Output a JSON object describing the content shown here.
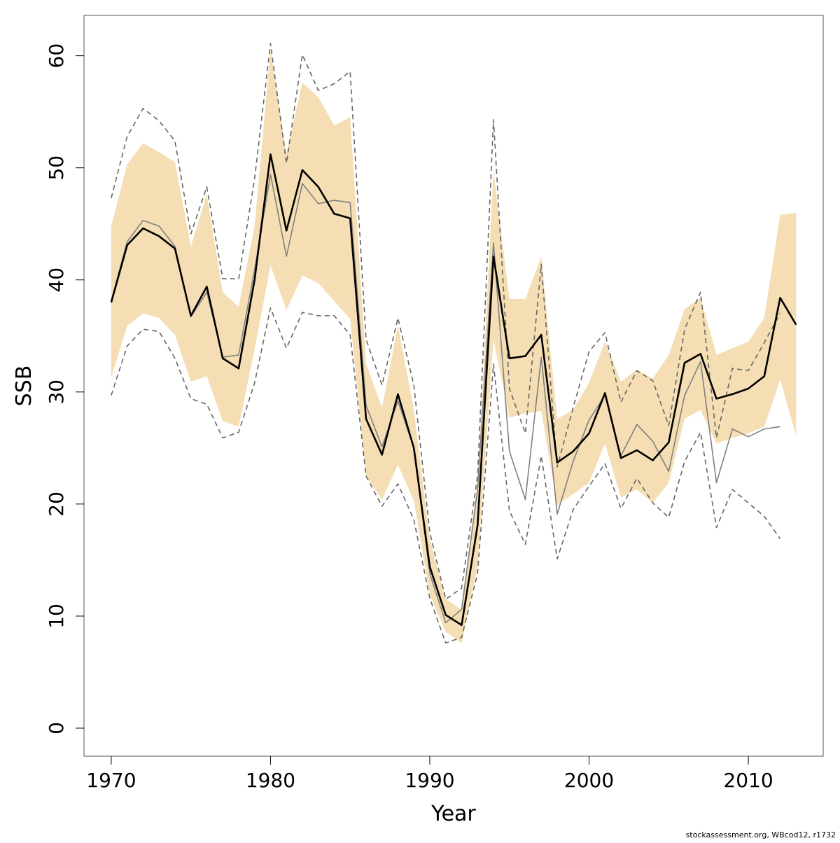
{
  "chart_data": {
    "type": "line",
    "x_label": "Year",
    "y_label": "SSB",
    "caption": "stockassessment.org, WBcod12, r1732",
    "x": [
      1970,
      1971,
      1972,
      1973,
      1974,
      1975,
      1976,
      1977,
      1978,
      1979,
      1980,
      1981,
      1982,
      1983,
      1984,
      1985,
      1986,
      1987,
      1988,
      1989,
      1990,
      1991,
      1992,
      1993,
      1994,
      1995,
      1996,
      1997,
      1998,
      1999,
      2000,
      2001,
      2002,
      2003,
      2004,
      2005,
      2006,
      2007,
      2008,
      2009,
      2010,
      2011,
      2012,
      2013
    ],
    "xlim": [
      1968.29,
      2014.7
    ],
    "xticks": [
      1970,
      1980,
      1990,
      2000,
      2010
    ],
    "ylim": [
      -2.5,
      63.6
    ],
    "yticks": [
      0,
      10,
      20,
      30,
      40,
      50,
      60
    ],
    "band": {
      "color": "#f5deb3",
      "upper": [
        44.8,
        50.3,
        52.2,
        51.4,
        50.5,
        43.0,
        47.6,
        38.9,
        37.6,
        44.8,
        60.5,
        51.3,
        57.6,
        56.3,
        53.8,
        54.5,
        32.5,
        28.6,
        35.9,
        28.4,
        16.9,
        11.5,
        10.6,
        21.9,
        49.7,
        38.3,
        38.3,
        42.1,
        27.6,
        28.4,
        30.8,
        34.5,
        30.9,
        32.0,
        31.2,
        33.3,
        37.4,
        38.4,
        33.3,
        33.9,
        34.5,
        36.6,
        45.8,
        46.0
      ],
      "lower": [
        31.3,
        35.9,
        37.0,
        36.6,
        35.1,
        30.9,
        31.4,
        27.4,
        26.9,
        33.8,
        41.3,
        37.3,
        40.4,
        39.7,
        38.1,
        36.5,
        22.5,
        20.4,
        23.5,
        20.3,
        11.9,
        8.6,
        7.6,
        14.4,
        34.7,
        27.7,
        28.1,
        28.3,
        19.9,
        20.9,
        21.9,
        25.4,
        20.6,
        21.3,
        20.1,
        21.9,
        27.6,
        28.4,
        25.4,
        25.9,
        26.3,
        26.9,
        31.1,
        26.1
      ]
    },
    "series": [
      {
        "color": "#666666",
        "dashed": true,
        "width": 1.6,
        "values": [
          47.3,
          52.8,
          55.3,
          54.2,
          52.4,
          44.1,
          48.3,
          40.1,
          40.1,
          49.0,
          61.1,
          50.4,
          60.1,
          56.9,
          57.5,
          58.6,
          34.7,
          30.6,
          36.6,
          30.6,
          17.5,
          11.5,
          12.5,
          22.5,
          54.3,
          30.3,
          26.3,
          41.4,
          23.3,
          28.6,
          33.6,
          35.3,
          29.1,
          31.9,
          31.0,
          27.0,
          35.6,
          38.9,
          25.9,
          32.1,
          31.9,
          34.4,
          37.0,
          null
        ]
      },
      {
        "color": "#666666",
        "dashed": true,
        "width": 1.6,
        "values": [
          29.7,
          34.1,
          35.6,
          35.4,
          33.0,
          29.4,
          28.9,
          25.9,
          26.4,
          30.8,
          37.5,
          33.9,
          37.1,
          36.8,
          36.8,
          35.1,
          22.5,
          19.8,
          21.8,
          18.6,
          11.6,
          7.6,
          8.1,
          13.8,
          32.5,
          19.4,
          16.4,
          24.3,
          15.1,
          19.5,
          21.6,
          23.6,
          19.6,
          22.3,
          20.1,
          18.8,
          23.8,
          26.4,
          17.9,
          21.3,
          20.1,
          18.9,
          16.9,
          null
        ]
      },
      {
        "color": "#808080",
        "dashed": false,
        "width": 1.6,
        "values": [
          38.1,
          43.4,
          45.3,
          44.8,
          43.0,
          36.7,
          38.9,
          33.1,
          33.3,
          40.9,
          49.4,
          42.1,
          48.6,
          46.8,
          47.1,
          46.9,
          28.8,
          25.1,
          29.2,
          25.0,
          13.8,
          9.4,
          10.6,
          21.3,
          43.3,
          24.7,
          20.4,
          33.1,
          19.1,
          23.8,
          27.5,
          29.7,
          24.3,
          27.1,
          25.6,
          22.9,
          29.7,
          32.7,
          21.9,
          26.7,
          26.0,
          26.7,
          26.9,
          null
        ]
      },
      {
        "color": "#000000",
        "dashed": false,
        "width": 2.6,
        "values": [
          38.0,
          43.1,
          44.6,
          43.9,
          42.8,
          36.8,
          39.4,
          33.0,
          32.1,
          40.0,
          51.2,
          44.4,
          49.8,
          48.3,
          45.9,
          45.5,
          27.6,
          24.4,
          29.8,
          25.0,
          14.4,
          10.1,
          9.2,
          18.1,
          42.1,
          33.0,
          33.2,
          35.1,
          23.7,
          24.7,
          26.3,
          29.9,
          24.1,
          24.8,
          23.9,
          25.5,
          32.6,
          33.4,
          29.4,
          29.8,
          30.3,
          31.4,
          38.4,
          36.0
        ]
      }
    ]
  }
}
